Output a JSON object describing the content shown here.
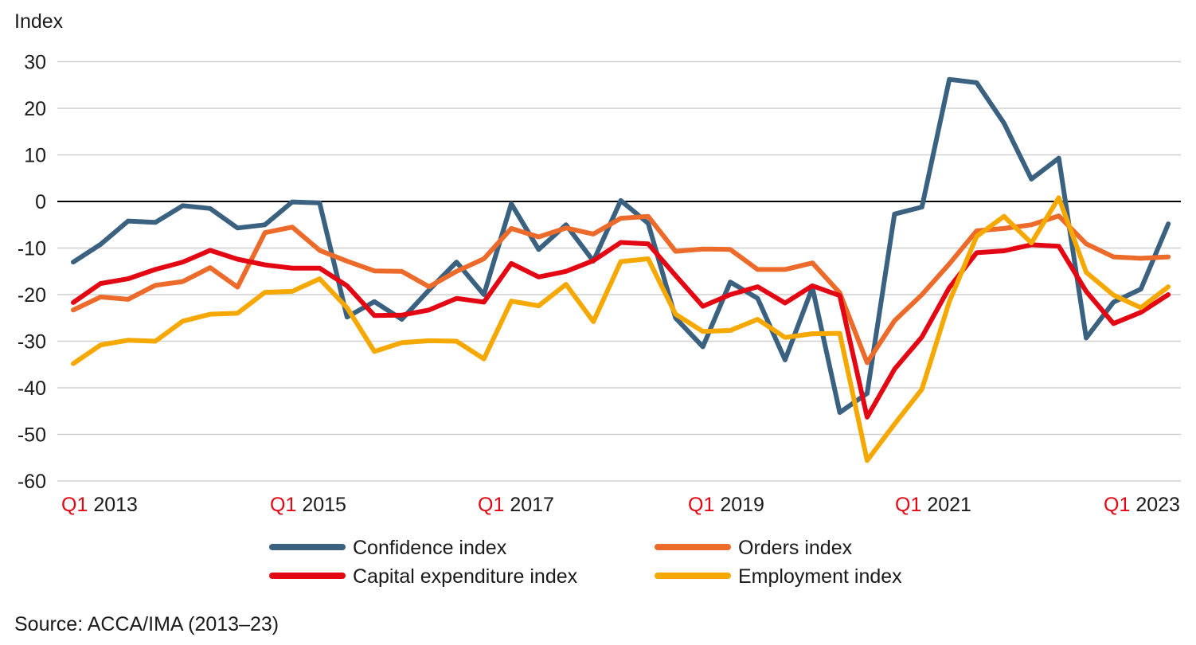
{
  "chart_data": {
    "type": "line",
    "ylabel": "Index",
    "ylim": [
      -60,
      30
    ],
    "yticks": [
      30,
      20,
      10,
      0,
      -10,
      -20,
      -30,
      -40,
      -50,
      -60
    ],
    "grid": true,
    "legend_position": "bottom",
    "x": [
      "Q1 2013",
      "Q2 2013",
      "Q3 2013",
      "Q4 2013",
      "Q1 2014",
      "Q2 2014",
      "Q3 2014",
      "Q4 2014",
      "Q1 2015",
      "Q2 2015",
      "Q3 2015",
      "Q4 2015",
      "Q1 2016",
      "Q2 2016",
      "Q3 2016",
      "Q4 2016",
      "Q1 2017",
      "Q2 2017",
      "Q3 2017",
      "Q4 2017",
      "Q1 2018",
      "Q2 2018",
      "Q3 2018",
      "Q4 2018",
      "Q1 2019",
      "Q2 2019",
      "Q3 2019",
      "Q4 2019",
      "Q1 2020",
      "Q2 2020",
      "Q3 2020",
      "Q4 2020",
      "Q1 2021",
      "Q2 2021",
      "Q3 2021",
      "Q4 2021",
      "Q1 2022",
      "Q2 2022",
      "Q3 2022",
      "Q4 2022",
      "Q1 2023"
    ],
    "xticks": [
      {
        "q": "Q1",
        "year": "2013"
      },
      {
        "q": "Q1",
        "year": "2015"
      },
      {
        "q": "Q1",
        "year": "2017"
      },
      {
        "q": "Q1",
        "year": "2019"
      },
      {
        "q": "Q1",
        "year": "2021"
      },
      {
        "q": "Q1",
        "year": "2023"
      }
    ],
    "series": [
      {
        "name": "Confidence index",
        "color": "#3a6180",
        "values": [
          -13,
          -9.2,
          -4.2,
          -4.5,
          -0.9,
          -1.5,
          -5.7,
          -5,
          -0.1,
          -0.3,
          -24.8,
          -21.5,
          -25.3,
          -19,
          -13,
          -20,
          -0.5,
          -10.3,
          -5,
          -12.8,
          0.2,
          -4.7,
          -25,
          -31.2,
          -17.3,
          -20.8,
          -34,
          -18.5,
          -45.3,
          -41.2,
          -2.7,
          -1.2,
          26.2,
          25.5,
          16.8,
          4.8,
          9.3,
          -29.3,
          -21.6,
          -18.8,
          -4.8
        ]
      },
      {
        "name": "Orders index",
        "color": "#ec6a2a",
        "values": [
          -23.3,
          -20.5,
          -21,
          -18,
          -17.2,
          -14.2,
          -18.4,
          -6.7,
          -5.5,
          -10.5,
          -12.8,
          -14.9,
          -15,
          -18.3,
          -15,
          -12.3,
          -5.8,
          -7.6,
          -5.7,
          -7,
          -3.6,
          -3.2,
          -10.7,
          -10.2,
          -10.3,
          -14.6,
          -14.6,
          -13.2,
          -19.6,
          -34.6,
          -25.6,
          -20,
          -13.4,
          -6.3,
          -5.8,
          -5,
          -3.1,
          -9.1,
          -11.9,
          -12.2,
          -11.9
        ]
      },
      {
        "name": "Capital expenditure index",
        "color": "#e30613",
        "values": [
          -21.7,
          -17.6,
          -16.6,
          -14.6,
          -13,
          -10.5,
          -12.4,
          -13.6,
          -14.3,
          -14.3,
          -18.1,
          -24.5,
          -24.4,
          -23.3,
          -20.8,
          -21.6,
          -13.3,
          -16.2,
          -15,
          -12.7,
          -8.8,
          -9.1,
          -15.9,
          -22.5,
          -20,
          -18.3,
          -21.8,
          -18.1,
          -20.2,
          -46.3,
          -36,
          -29.1,
          -18.5,
          -11,
          -10.6,
          -9.3,
          -9.6,
          -19.3,
          -26.2,
          -23.8,
          -20
        ]
      },
      {
        "name": "Employment index",
        "color": "#f5a800",
        "values": [
          -34.8,
          -30.8,
          -29.8,
          -30,
          -25.7,
          -24.2,
          -24,
          -19.5,
          -19.3,
          -16.6,
          -22.8,
          -32.2,
          -30.3,
          -29.9,
          -30,
          -33.8,
          -21.4,
          -22.4,
          -17.8,
          -25.8,
          -12.9,
          -12.3,
          -24.2,
          -27.9,
          -27.7,
          -25.3,
          -29.2,
          -28.4,
          -28.3,
          -55.6,
          -47.8,
          -40.3,
          -21.5,
          -7.5,
          -3.2,
          -8.9,
          0.8,
          -15.2,
          -20.1,
          -22.8,
          -18.3
        ]
      }
    ],
    "source": "Source: ACCA/IMA (2013–23)"
  }
}
